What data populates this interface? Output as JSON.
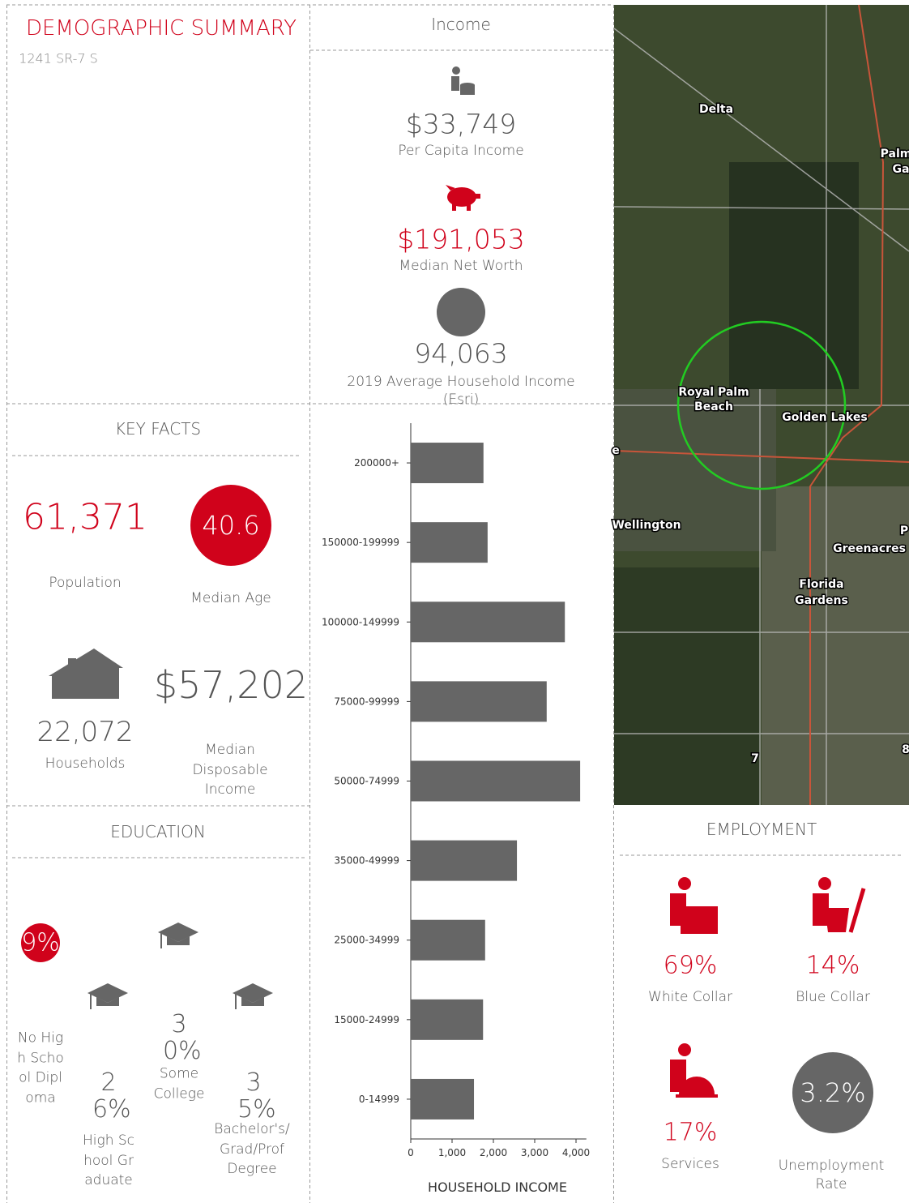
{
  "header": {
    "title": "DEMOGRAPHIC SUMMARY",
    "address": "1241 SR-7 S"
  },
  "income": {
    "title": "Income",
    "items": [
      {
        "value": "$33,749",
        "label": "Per Capita Income"
      },
      {
        "value": "$191,053",
        "label": "Median Net Worth"
      },
      {
        "value": "94,063",
        "label": "2019 Average Household Income (Esri)"
      }
    ]
  },
  "key_facts": {
    "title": "KEY FACTS",
    "population": {
      "value": "61,371",
      "label": "Population"
    },
    "median_age": {
      "value": "40.6",
      "label": "Median Age"
    },
    "households": {
      "value": "22,072",
      "label": "Households"
    },
    "disposable_income": {
      "value": "$57,202",
      "label": "Median Disposable Income"
    }
  },
  "education": {
    "title": "EDUCATION",
    "items": [
      {
        "value": "9%",
        "label": "No High School Diploma"
      },
      {
        "value": "26%",
        "label": "High School Graduate"
      },
      {
        "value": "30%",
        "label": "Some College"
      },
      {
        "value": "35%",
        "label": "Bachelor's/ Grad/Prof Degree"
      }
    ]
  },
  "employment": {
    "title": "EMPLOYMENT",
    "items": [
      {
        "value": "69%",
        "label": "White Collar"
      },
      {
        "value": "14%",
        "label": "Blue Collar"
      },
      {
        "value": "17%",
        "label": "Services"
      },
      {
        "value": "3.2%",
        "label": "Unemployment Rate"
      }
    ]
  },
  "map": {
    "labels": [
      "Delta",
      "Palm",
      "Ga",
      "Royal Palm Beach",
      "Golden Lakes",
      "Wellington",
      "Greenacres",
      "P",
      "Florida Gardens",
      "7",
      "8",
      "e"
    ]
  },
  "chart_data": {
    "type": "barh",
    "x_label": "HOUSEHOLD INCOME",
    "categories": [
      "200000+",
      "150000-199999",
      "100000-149999",
      "75000-99999",
      "50000-74999",
      "35000-49999",
      "25000-34999",
      "15000-24999",
      "0-14999"
    ],
    "values": [
      1760,
      1860,
      3730,
      3290,
      4100,
      2570,
      1800,
      1750,
      1530
    ],
    "color": "#666666",
    "xlim": [
      0,
      4250
    ],
    "xticks": [
      0,
      {
        "value": 1000,
        "label": "1,000"
      },
      {
        "value": 2000,
        "label": "2,000"
      },
      {
        "value": 3000,
        "label": "3,000"
      },
      {
        "value": 4000,
        "label": "4,000"
      }
    ]
  }
}
